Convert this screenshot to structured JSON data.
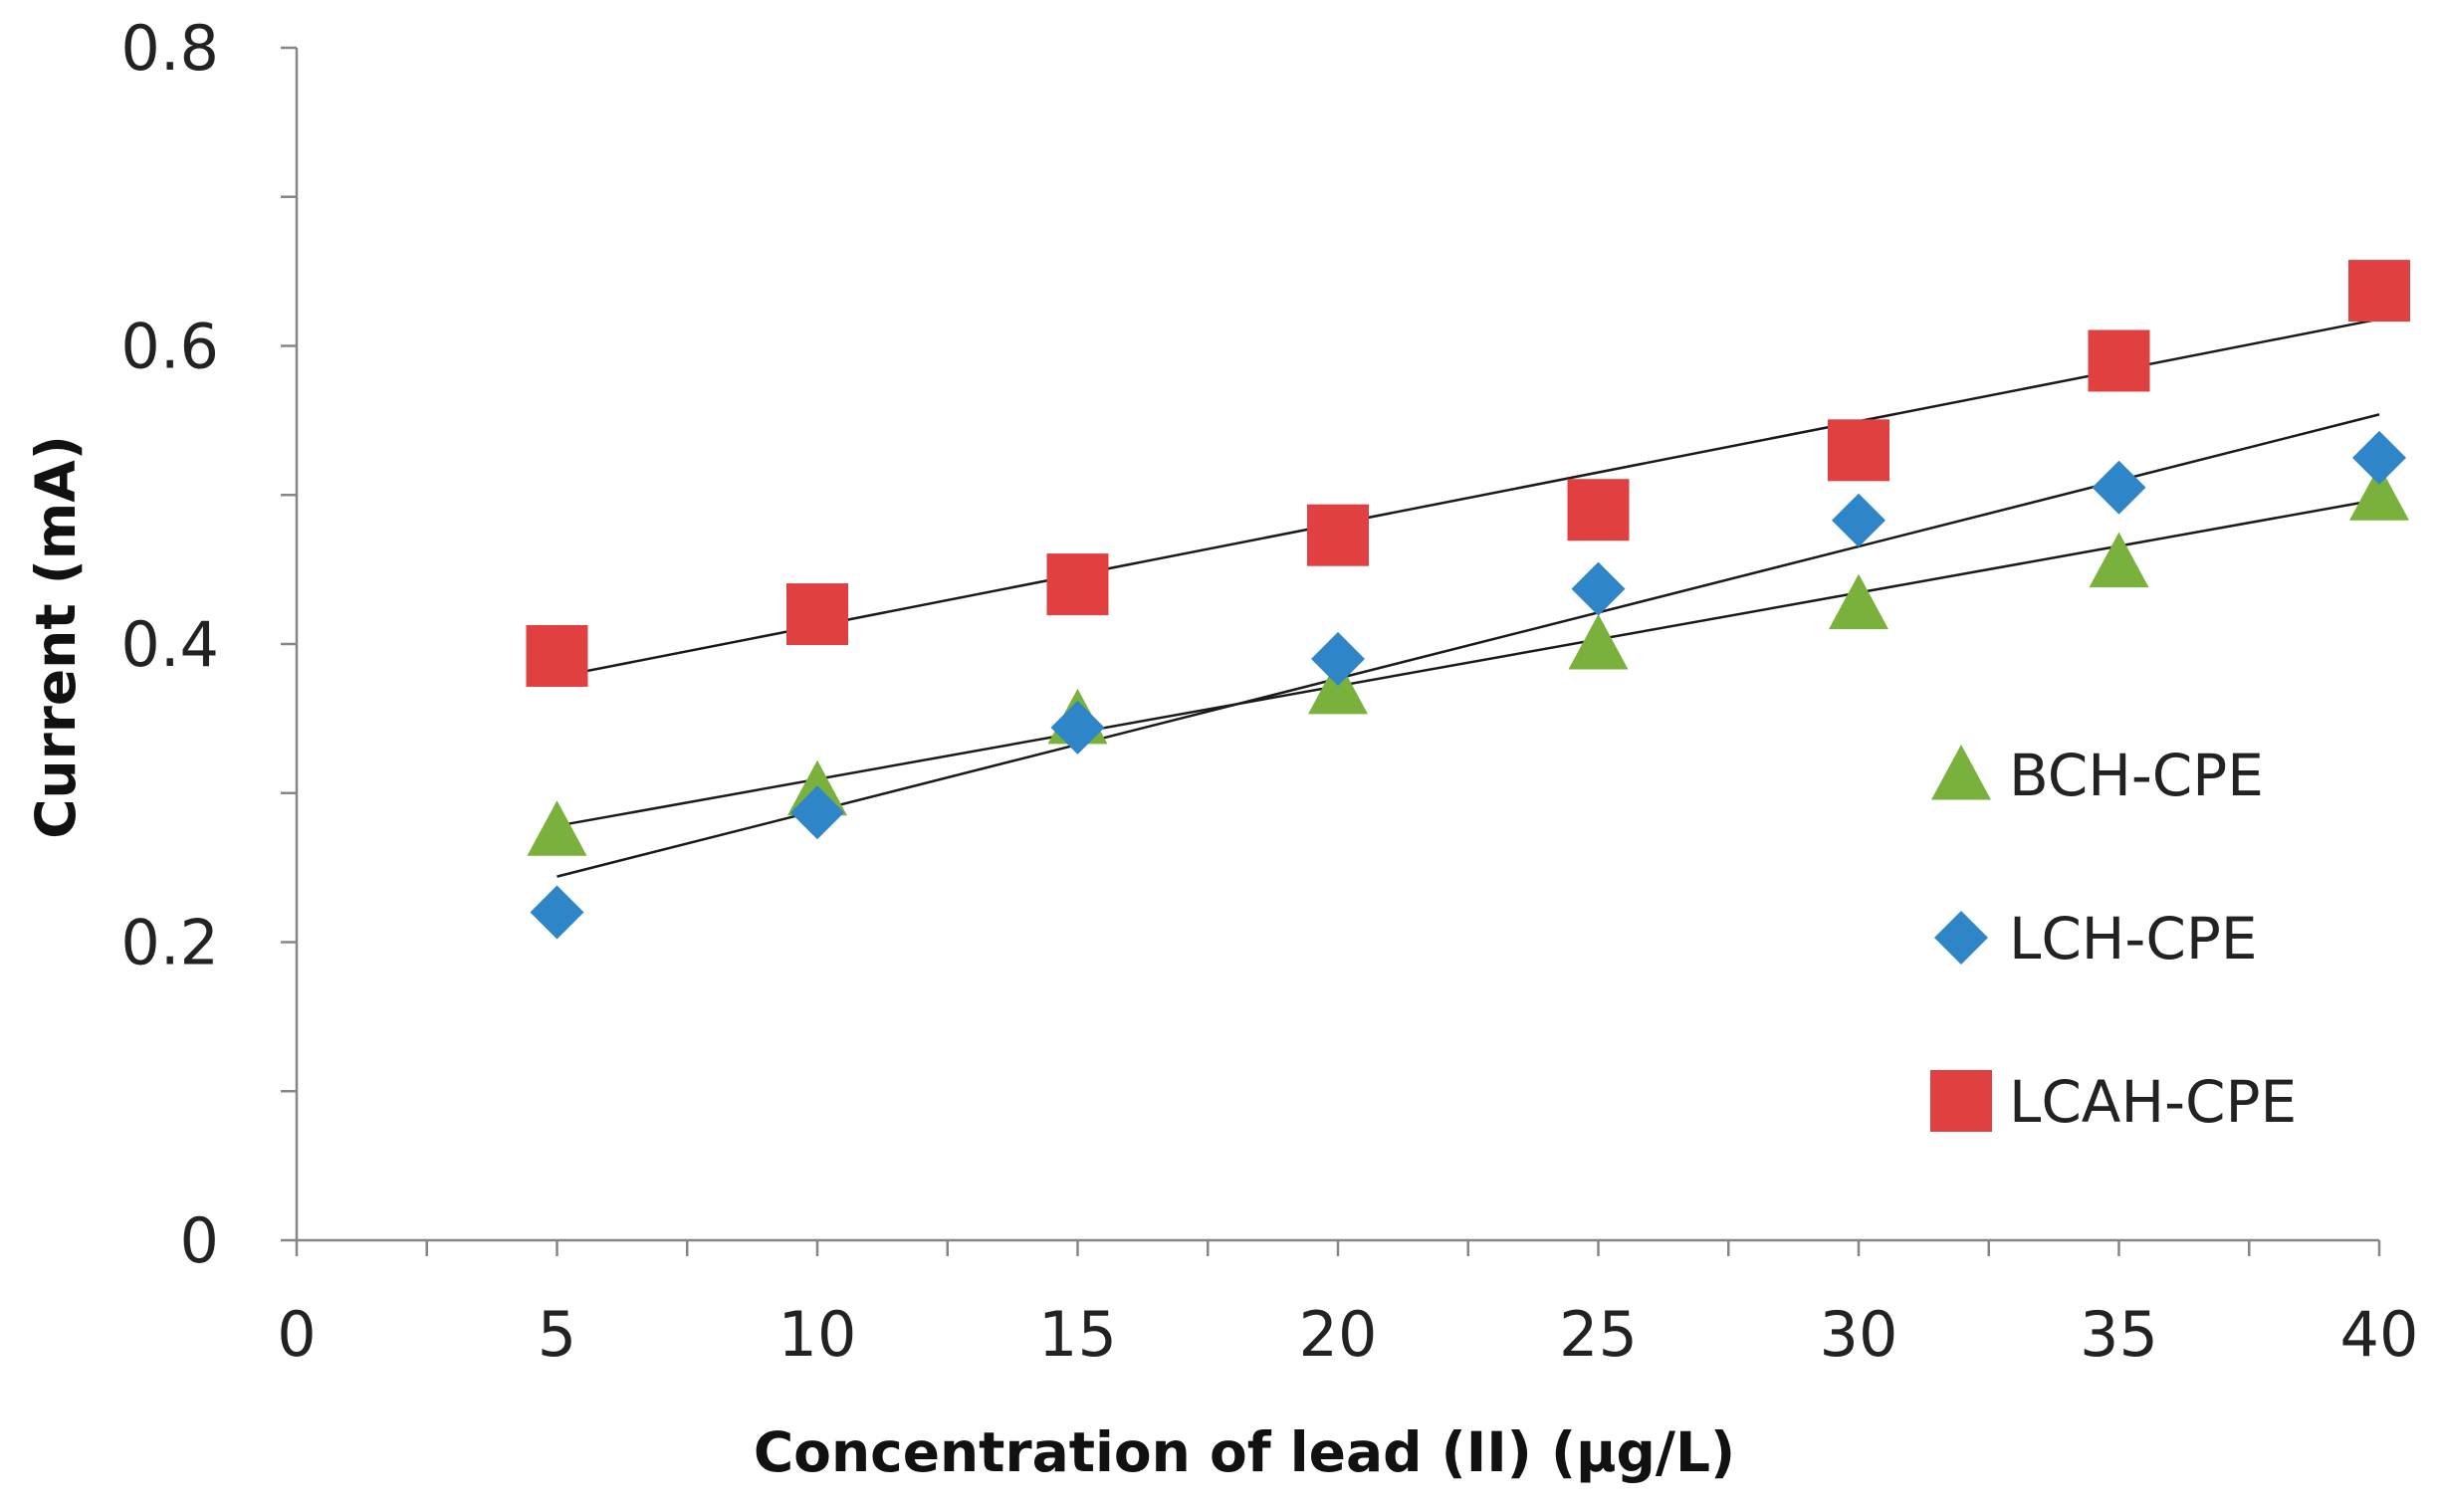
{
  "chart_data": {
    "type": "scatter",
    "title": "",
    "xlabel": "Concentration of lead (II) (µg/L)",
    "ylabel": "Current (mA)",
    "xlim": [
      0,
      40
    ],
    "ylim": [
      0,
      0.8
    ],
    "xticks": [
      0,
      5,
      10,
      15,
      20,
      25,
      30,
      35,
      40
    ],
    "xtick_labels": [
      "0",
      "5",
      "10",
      "15",
      "20",
      "25",
      "30",
      "35",
      "40"
    ],
    "xminor_step": 2.5,
    "yticks": [
      0,
      0.2,
      0.4,
      0.6,
      0.8
    ],
    "ytick_labels": [
      "0",
      "0.2",
      "0.4",
      "0.6",
      "0.8"
    ],
    "yminor_step": 0.1,
    "grid": false,
    "legend_position": "right",
    "series": [
      {
        "name": "BCH-CPE",
        "marker": "triangle",
        "color": "#7AB13D",
        "x": [
          5,
          10,
          15,
          20,
          25,
          30,
          35,
          40
        ],
        "y": [
          0.275,
          0.302,
          0.35,
          0.37,
          0.4,
          0.427,
          0.455,
          0.5
        ],
        "trendline": {
          "x": [
            5,
            40
          ],
          "y": [
            0.278,
            0.497
          ]
        }
      },
      {
        "name": "LCH-CPE",
        "marker": "diamond",
        "color": "#2E86C8",
        "x": [
          5,
          10,
          15,
          20,
          25,
          30,
          35,
          40
        ],
        "y": [
          0.22,
          0.287,
          0.344,
          0.39,
          0.437,
          0.483,
          0.505,
          0.525
        ],
        "trendline": {
          "x": [
            5,
            40
          ],
          "y": [
            0.244,
            0.554
          ]
        }
      },
      {
        "name": "LCAH-CPE",
        "marker": "square",
        "color": "#E04040",
        "x": [
          5,
          10,
          15,
          20,
          25,
          30,
          35,
          40
        ],
        "y": [
          0.392,
          0.42,
          0.44,
          0.473,
          0.49,
          0.53,
          0.59,
          0.637
        ],
        "trendline": {
          "x": [
            5,
            40
          ],
          "y": [
            0.378,
            0.618
          ]
        }
      }
    ]
  }
}
